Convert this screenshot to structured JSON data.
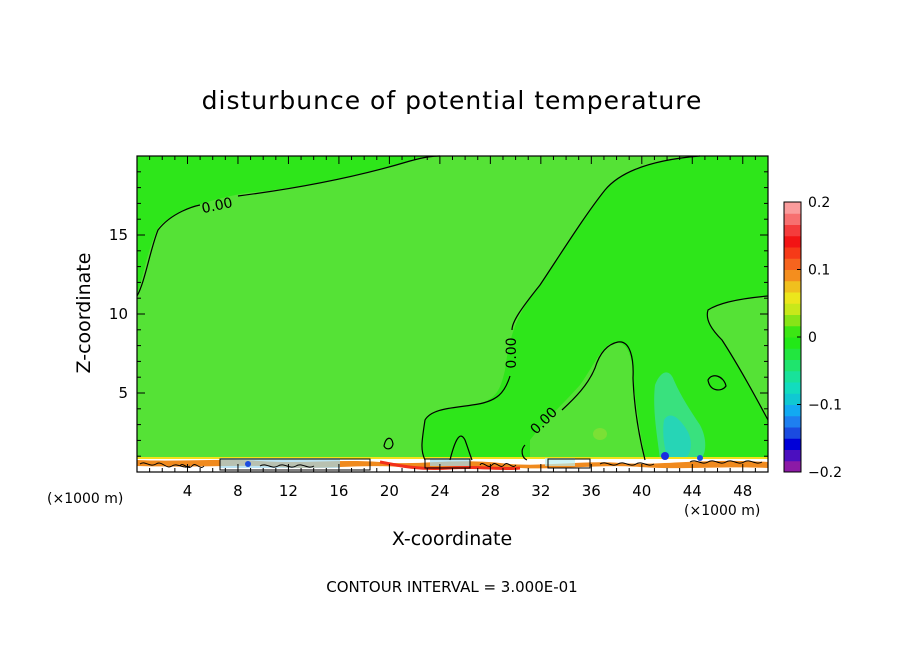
{
  "chart_data": {
    "type": "heatmap",
    "title": "disturbunce of potential temperature",
    "xlabel": "X-coordinate",
    "ylabel": "Z-coordinate",
    "x_unit": "(×1000 m)",
    "xlim": [
      0,
      50
    ],
    "ylim": [
      0,
      20
    ],
    "x_ticks": [
      4,
      8,
      12,
      16,
      20,
      24,
      28,
      32,
      36,
      40,
      44,
      48
    ],
    "y_ticks": [
      5,
      10,
      15
    ],
    "contour_interval_text": "CONTOUR INTERVAL = 3.000E-01",
    "contour_labels": [
      "0.00",
      "0.00",
      "0.00"
    ],
    "colorbar": {
      "range": [
        -0.2,
        0.2
      ],
      "tick_labels": [
        "0.2",
        "0.1",
        "0",
        "−0.1",
        "−0.2"
      ],
      "tick_values": [
        0.2,
        0.1,
        0,
        -0.1,
        -0.2
      ],
      "colors": [
        "#8c1aa6",
        "#4b0fbf",
        "#0000d8",
        "#1a4be0",
        "#1e7ff0",
        "#12aaf2",
        "#10c8d2",
        "#12dcbe",
        "#18e29a",
        "#1fe46d",
        "#22e63f",
        "#22e817",
        "#3ce614",
        "#87e417",
        "#c8e81a",
        "#ece61c",
        "#f0c01e",
        "#f48e1e",
        "#f6641e",
        "#f63a18",
        "#f21414",
        "#f43c3c",
        "#f77070",
        "#fa9c9c"
      ]
    },
    "fields": {
      "background_value": 0.0,
      "background_color": "#4ee63a"
    }
  }
}
